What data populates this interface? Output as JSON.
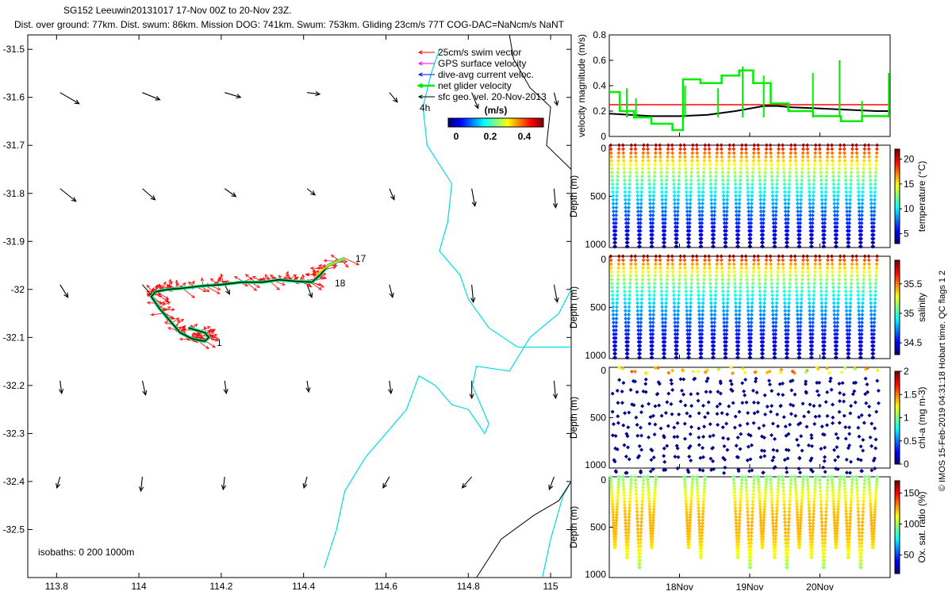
{
  "title": {
    "line1": "SG152 Leeuwin20131017 17-Nov 00Z to 20-Nov 23Z.",
    "line2": "Dist. over ground: 77km. Dist. swum: 86km. Mission DOG: 741km. Swum: 753km. Gliding 23cm/s 77T COG-DAC=NaNcm/s NaNT"
  },
  "colors": {
    "red": "#ff0000",
    "magenta": "#ff00ff",
    "blue": "#0000ff",
    "green": "#00ee00",
    "cyan": "#00dddd",
    "black": "#000000"
  },
  "chart_data": [
    {
      "type": "scatter",
      "name": "track map",
      "xlim": [
        113.73,
        115.05
      ],
      "ylim": [
        -32.6,
        -31.47
      ],
      "xticks": [
        "113.8",
        "114",
        "114.2",
        "114.4",
        "114.6",
        "114.8",
        "115"
      ],
      "yticks": [
        "-31.5",
        "-31.6",
        "-31.7",
        "-31.8",
        "-31.9",
        "-32",
        "-32.1",
        "-32.2",
        "-32.3",
        "-32.4",
        "-32.5"
      ],
      "legend": [
        {
          "label": "25cm/s swim vector",
          "color": "#ff0000"
        },
        {
          "label": "GPS surface velocity",
          "color": "#ff00ff"
        },
        {
          "label": "dive-avg current veloc.",
          "color": "#0000ff"
        },
        {
          "label": "net glider velocity",
          "color": "#00ee00"
        },
        {
          "label": "sfc geo. vel. 20-Nov-2013",
          "color": "#000000"
        }
      ],
      "legend_extra": "4h",
      "colorbar": {
        "label": "(m/s)",
        "ticks": [
          "0",
          "0.2",
          "0.4"
        ]
      },
      "day_labels": [
        "17",
        "18",
        "1"
      ],
      "isobaths": "isobaths: 0   200  1000m",
      "track": [
        [
          114.5,
          -31.935
        ],
        [
          114.46,
          -31.95
        ],
        [
          114.44,
          -31.97
        ],
        [
          114.42,
          -31.985
        ],
        [
          114.38,
          -31.983
        ],
        [
          114.34,
          -31.98
        ],
        [
          114.3,
          -31.985
        ],
        [
          114.25,
          -31.985
        ],
        [
          114.2,
          -31.99
        ],
        [
          114.15,
          -31.993
        ],
        [
          114.1,
          -31.998
        ],
        [
          114.07,
          -32.0
        ],
        [
          114.04,
          -32.005
        ],
        [
          114.03,
          -32.015
        ],
        [
          114.05,
          -32.04
        ],
        [
          114.08,
          -32.07
        ],
        [
          114.1,
          -32.09
        ],
        [
          114.13,
          -32.103
        ],
        [
          114.16,
          -32.108
        ],
        [
          114.17,
          -32.1
        ],
        [
          114.16,
          -32.09
        ],
        [
          114.12,
          -32.08
        ]
      ]
    },
    {
      "type": "line",
      "name": "velocity",
      "ylabel": "velocity magnitude (m/s)",
      "xlim": [
        0,
        4
      ],
      "ylim": [
        0,
        0.8
      ],
      "yticks": [
        "0",
        "0.2",
        "0.4",
        "0.6",
        "0.8"
      ],
      "series": [
        {
          "name": "swim 25cm/s",
          "color": "#ff0000",
          "x": [
            0,
            4
          ],
          "y": [
            0.25,
            0.25
          ]
        },
        {
          "name": "black",
          "color": "#000000",
          "x": [
            0,
            0.3,
            0.6,
            1.0,
            1.4,
            1.8,
            2.2,
            2.4,
            2.6,
            3.0,
            3.4,
            3.8,
            4.0
          ],
          "y": [
            0.18,
            0.17,
            0.16,
            0.16,
            0.17,
            0.2,
            0.24,
            0.24,
            0.23,
            0.22,
            0.21,
            0.2,
            0.2
          ]
        },
        {
          "name": "net glider velocity",
          "color": "#00ee00",
          "x": [
            0,
            0.15,
            0.15,
            0.35,
            0.35,
            0.6,
            0.6,
            0.9,
            0.9,
            1.05,
            1.05,
            1.3,
            1.3,
            1.6,
            1.6,
            1.85,
            1.85,
            2.05,
            2.05,
            2.3,
            2.3,
            2.55,
            2.55,
            2.9,
            2.9,
            3.3,
            3.3,
            3.6,
            3.6,
            4.0
          ],
          "y": [
            0.35,
            0.35,
            0.2,
            0.2,
            0.15,
            0.15,
            0.1,
            0.1,
            0.05,
            0.05,
            0.45,
            0.45,
            0.42,
            0.42,
            0.48,
            0.48,
            0.52,
            0.52,
            0.42,
            0.42,
            0.26,
            0.26,
            0.2,
            0.2,
            0.16,
            0.16,
            0.12,
            0.12,
            0.16,
            0.16
          ]
        }
      ]
    },
    {
      "type": "scatter",
      "name": "temperature",
      "ylabel": "Depth (m)",
      "cblabel": "temperature (°C)",
      "ylim": [
        1000,
        0
      ],
      "yticks": [
        "0",
        "500",
        "1000"
      ],
      "cbticks": [
        "5",
        "10",
        "15",
        "20"
      ],
      "cbrange": [
        3,
        22
      ]
    },
    {
      "type": "scatter",
      "name": "salinity",
      "ylabel": "Depth (m)",
      "cblabel": "salinity",
      "ylim": [
        1000,
        0
      ],
      "yticks": [
        "0",
        "500",
        "1000"
      ],
      "cbticks": [
        "34.5",
        "35",
        "35.5"
      ],
      "cbrange": [
        34.3,
        35.9
      ]
    },
    {
      "type": "scatter",
      "name": "chl-a",
      "ylabel": "Depth (m)",
      "cblabel": "chl-a (mg m-3)",
      "ylim": [
        1000,
        0
      ],
      "yticks": [
        "0",
        "500",
        "1000"
      ],
      "cbticks": [
        "0",
        "0.5",
        "1",
        "1.5",
        "2"
      ],
      "cbrange": [
        0,
        2
      ]
    },
    {
      "type": "scatter",
      "name": "oxygen",
      "ylabel": "Depth (m)",
      "cblabel": "Ox. sat. ratio (%)",
      "ylim": [
        1000,
        0
      ],
      "yticks": [
        "0",
        "500",
        "1000"
      ],
      "cbticks": [
        "50",
        "100",
        "150"
      ],
      "cbrange": [
        20,
        170
      ],
      "xticks": [
        "18Nov",
        "19Nov",
        "20Nov"
      ]
    }
  ],
  "side_caption": "© IMOS 15-Feb-2019 04:31:18 Hobart time. QC flags 1  2"
}
